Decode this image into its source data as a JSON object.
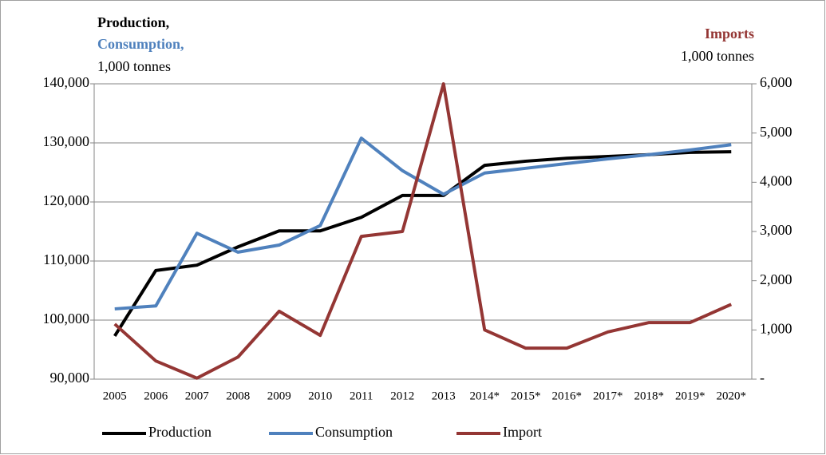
{
  "chart_data": {
    "type": "line",
    "y_label_lines": [
      "Production,",
      "Consumption,",
      "1,000 tonnes"
    ],
    "y2_label_lines": [
      "Imports",
      "1,000 tonnes"
    ],
    "categories": [
      "2005",
      "2006",
      "2007",
      "2008",
      "2009",
      "2010",
      "2011",
      "2012",
      "2013",
      "2014*",
      "2015*",
      "2016*",
      "2017*",
      "2018*",
      "2019*",
      "2020*"
    ],
    "series": [
      {
        "name": "Production",
        "color": "#000000",
        "values": [
          97300,
          108400,
          109300,
          112400,
          115100,
          115100,
          117400,
          121100,
          121100,
          126200,
          126900,
          127400,
          127700,
          128000,
          128400,
          128500
        ]
      },
      {
        "name": "Consumption",
        "color": "#4f81bd",
        "values": [
          101900,
          102400,
          114700,
          111500,
          112700,
          116000,
          130800,
          125300,
          121300,
          124900,
          125700,
          126500,
          127300,
          128000,
          128800,
          129700
        ]
      },
      {
        "name": "Import",
        "color": "#943634",
        "axis": "y2",
        "values": [
          1120,
          370,
          20,
          450,
          1380,
          890,
          2900,
          3000,
          6000,
          1000,
          630,
          630,
          960,
          1150,
          1150,
          1520
        ]
      }
    ],
    "ylim": [
      90000,
      140000
    ],
    "yticks": [
      {
        "value": 90000,
        "label": "90,000"
      },
      {
        "value": 100000,
        "label": "100,000"
      },
      {
        "value": 110000,
        "label": "110,000"
      },
      {
        "value": 120000,
        "label": "120,000"
      },
      {
        "value": 130000,
        "label": "130,000"
      },
      {
        "value": 140000,
        "label": "140,000"
      }
    ],
    "y2lim": [
      0,
      6000
    ],
    "y2ticks": [
      {
        "value": 0,
        "label": "-"
      },
      {
        "value": 1000,
        "label": "1,000"
      },
      {
        "value": 2000,
        "label": "2,000"
      },
      {
        "value": 3000,
        "label": "3,000"
      },
      {
        "value": 4000,
        "label": "4,000"
      },
      {
        "value": 5000,
        "label": "5,000"
      },
      {
        "value": 6000,
        "label": "6,000"
      }
    ],
    "grid": true,
    "legend": "bottom"
  }
}
